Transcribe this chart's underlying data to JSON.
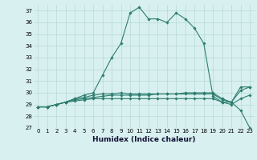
{
  "title": "",
  "xlabel": "Humidex (Indice chaleur)",
  "x": [
    0,
    1,
    2,
    3,
    4,
    5,
    6,
    7,
    8,
    9,
    10,
    11,
    12,
    13,
    14,
    15,
    16,
    17,
    18,
    19,
    20,
    21,
    22,
    23
  ],
  "series1": [
    28.8,
    28.8,
    29.0,
    29.2,
    29.5,
    29.8,
    30.0,
    31.5,
    33.0,
    34.2,
    36.8,
    37.3,
    36.3,
    36.3,
    36.0,
    36.8,
    36.3,
    35.5,
    34.2,
    29.7,
    29.2,
    29.2,
    28.5,
    27.0
  ],
  "series2": [
    28.8,
    28.8,
    29.0,
    29.2,
    29.5,
    29.6,
    29.8,
    29.9,
    29.9,
    30.0,
    29.9,
    29.9,
    29.9,
    29.9,
    29.9,
    29.9,
    30.0,
    30.0,
    30.0,
    30.0,
    29.5,
    29.2,
    30.5,
    30.5
  ],
  "series3": [
    28.8,
    28.8,
    29.0,
    29.2,
    29.4,
    29.5,
    29.6,
    29.7,
    29.8,
    29.8,
    29.8,
    29.8,
    29.8,
    29.9,
    29.9,
    29.9,
    29.9,
    29.9,
    29.9,
    29.9,
    29.4,
    29.2,
    30.2,
    30.5
  ],
  "series4": [
    28.8,
    28.8,
    29.0,
    29.2,
    29.3,
    29.4,
    29.5,
    29.5,
    29.5,
    29.5,
    29.5,
    29.5,
    29.5,
    29.5,
    29.5,
    29.5,
    29.5,
    29.5,
    29.5,
    29.5,
    29.2,
    29.0,
    29.5,
    29.8
  ],
  "line_color": "#2e7d6e",
  "bg_color": "#d8f0f0",
  "grid_color": "#b8d8d8",
  "ylim": [
    27,
    37.5
  ],
  "yticks": [
    27,
    28,
    29,
    30,
    31,
    32,
    33,
    34,
    35,
    36,
    37
  ],
  "xticks": [
    0,
    1,
    2,
    3,
    4,
    5,
    6,
    7,
    8,
    9,
    10,
    11,
    12,
    13,
    14,
    15,
    16,
    17,
    18,
    19,
    20,
    21,
    22,
    23
  ],
  "marker": "D",
  "markersize": 1.8,
  "linewidth": 0.8,
  "xlabel_fontsize": 6.5,
  "tick_fontsize": 5.0
}
